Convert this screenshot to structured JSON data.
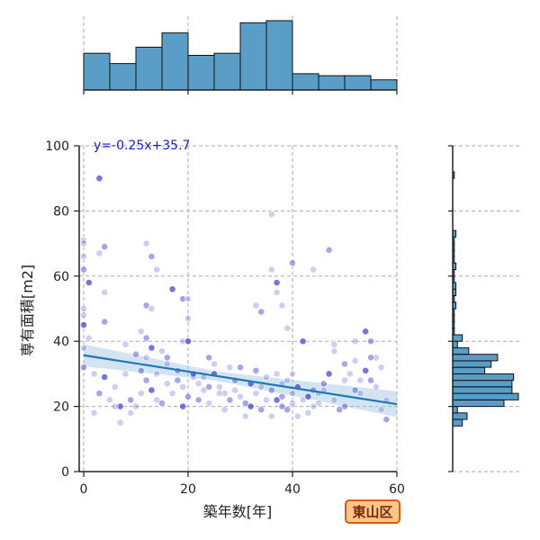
{
  "chart_data": {
    "type": "scatter",
    "xlabel": "築年数[年]",
    "ylabel": "専有面積[m2]",
    "xlim": [
      -1,
      60
    ],
    "ylim": [
      0,
      100
    ],
    "xticks": [
      0,
      20,
      40,
      60
    ],
    "yticks": [
      0,
      20,
      40,
      60,
      80,
      100
    ],
    "grid": true,
    "regression": {
      "label": "y=-0.25x+35.7",
      "slope": -0.25,
      "intercept": 35.7
    },
    "badge": "東山区",
    "colors": {
      "point": "#3b3bcc",
      "line": "#1f77b4",
      "band": "#9cc3e3",
      "hist": "#5a9ec8",
      "badge_fill": "#fcc58a",
      "badge_border": "#e05a10",
      "equation": "#1a1ad0"
    },
    "points": [
      [
        3,
        90
      ],
      [
        0,
        71
      ],
      [
        0,
        70
      ],
      [
        4,
        69
      ],
      [
        3,
        67
      ],
      [
        0,
        66
      ],
      [
        0,
        62
      ],
      [
        1,
        58
      ],
      [
        12,
        70
      ],
      [
        13,
        66
      ],
      [
        14,
        62
      ],
      [
        4,
        55
      ],
      [
        12,
        51
      ],
      [
        13,
        50
      ],
      [
        17,
        56
      ],
      [
        19,
        53
      ],
      [
        20,
        53
      ],
      [
        20,
        47
      ],
      [
        4,
        46
      ],
      [
        0,
        50
      ],
      [
        0,
        48
      ],
      [
        0,
        45
      ],
      [
        1,
        41
      ],
      [
        0,
        38
      ],
      [
        0,
        32
      ],
      [
        2,
        30
      ],
      [
        11,
        43
      ],
      [
        12,
        41
      ],
      [
        13,
        38
      ],
      [
        8,
        39
      ],
      [
        10,
        36
      ],
      [
        12,
        35
      ],
      [
        15,
        37
      ],
      [
        16,
        35
      ],
      [
        19,
        40
      ],
      [
        20,
        40
      ],
      [
        24,
        35
      ],
      [
        25,
        33
      ],
      [
        28,
        32
      ],
      [
        30,
        32
      ],
      [
        36,
        79
      ],
      [
        36,
        62
      ],
      [
        37,
        58
      ],
      [
        37,
        55
      ],
      [
        38,
        51
      ],
      [
        34,
        49
      ],
      [
        33,
        51
      ],
      [
        39,
        44
      ],
      [
        40,
        64
      ],
      [
        42,
        40
      ],
      [
        44,
        62
      ],
      [
        47,
        68
      ],
      [
        48,
        39
      ],
      [
        48,
        37
      ],
      [
        50,
        33
      ],
      [
        52,
        40
      ],
      [
        54,
        43
      ],
      [
        55,
        40
      ],
      [
        56,
        35
      ],
      [
        57,
        32
      ],
      [
        3,
        24
      ],
      [
        5,
        22
      ],
      [
        6,
        26
      ],
      [
        7,
        20
      ],
      [
        8,
        30
      ],
      [
        7,
        15
      ],
      [
        9,
        22
      ],
      [
        10,
        20
      ],
      [
        11,
        24
      ],
      [
        12,
        28
      ],
      [
        13,
        25
      ],
      [
        14,
        22
      ],
      [
        15,
        21
      ],
      [
        16,
        27
      ],
      [
        17,
        24
      ],
      [
        18,
        28
      ],
      [
        19,
        26
      ],
      [
        19,
        20
      ],
      [
        20,
        23
      ],
      [
        21,
        29
      ],
      [
        22,
        27
      ],
      [
        22,
        22
      ],
      [
        23,
        25
      ],
      [
        24,
        21
      ],
      [
        25,
        30
      ],
      [
        26,
        26
      ],
      [
        27,
        24
      ],
      [
        28,
        22
      ],
      [
        29,
        25
      ],
      [
        30,
        23
      ],
      [
        31,
        21
      ],
      [
        32,
        27
      ],
      [
        33,
        24
      ],
      [
        34,
        19
      ],
      [
        35,
        22
      ],
      [
        35,
        29
      ],
      [
        36,
        25
      ],
      [
        37,
        30
      ],
      [
        37,
        22
      ],
      [
        38,
        20
      ],
      [
        38,
        27
      ],
      [
        39,
        28
      ],
      [
        39,
        19
      ],
      [
        40,
        24
      ],
      [
        40,
        30
      ],
      [
        41,
        26
      ],
      [
        42,
        22
      ],
      [
        43,
        18
      ],
      [
        44,
        25
      ],
      [
        45,
        21
      ],
      [
        45,
        24
      ],
      [
        46,
        27
      ],
      [
        47,
        30
      ],
      [
        48,
        22
      ],
      [
        49,
        19
      ],
      [
        50,
        28
      ],
      [
        51,
        30
      ],
      [
        52,
        25
      ],
      [
        53,
        28
      ],
      [
        54,
        31
      ],
      [
        55,
        28
      ],
      [
        56,
        26
      ],
      [
        57,
        19
      ],
      [
        58,
        16
      ],
      [
        58,
        22
      ],
      [
        2,
        18
      ],
      [
        4,
        29
      ],
      [
        6,
        20
      ],
      [
        9,
        18
      ],
      [
        11,
        31
      ],
      [
        14,
        30
      ],
      [
        16,
        33
      ],
      [
        18,
        31
      ],
      [
        21,
        30
      ],
      [
        23,
        29
      ],
      [
        24,
        26
      ],
      [
        26,
        24
      ],
      [
        27,
        19
      ],
      [
        29,
        28
      ],
      [
        31,
        17
      ],
      [
        32,
        20
      ],
      [
        33,
        31
      ],
      [
        34,
        26
      ],
      [
        36,
        17
      ],
      [
        38,
        23
      ],
      [
        40,
        21
      ],
      [
        41,
        17
      ],
      [
        43,
        23
      ],
      [
        44,
        20
      ],
      [
        46,
        25
      ],
      [
        50,
        20
      ],
      [
        52,
        34
      ],
      [
        53,
        24
      ],
      [
        55,
        35
      ]
    ],
    "x_histogram": {
      "bin_edges": [
        0,
        5,
        10,
        15,
        20,
        25,
        30,
        35,
        40,
        45,
        50,
        55,
        60
      ],
      "counts": [
        18,
        13,
        21,
        28,
        17,
        18,
        33,
        34,
        8,
        7,
        7,
        5
      ]
    },
    "y_histogram": {
      "bin_edges": [
        14,
        16,
        18,
        20,
        22,
        24,
        26,
        28,
        30,
        32,
        34,
        36,
        38,
        40,
        42,
        44,
        46,
        48,
        50,
        52,
        54,
        56,
        58,
        60,
        62,
        64,
        66,
        68,
        70,
        72,
        74,
        76,
        78,
        80,
        82,
        84,
        86,
        88,
        90,
        92
      ],
      "counts": [
        6,
        9,
        3,
        32,
        41,
        37,
        37,
        38,
        20,
        24,
        28,
        10,
        3,
        6,
        1,
        1,
        1,
        1,
        2,
        1,
        2,
        2,
        1,
        1,
        2,
        1,
        1,
        1,
        1,
        2,
        0,
        0,
        0,
        0,
        0,
        0,
        0,
        0,
        1
      ]
    }
  }
}
